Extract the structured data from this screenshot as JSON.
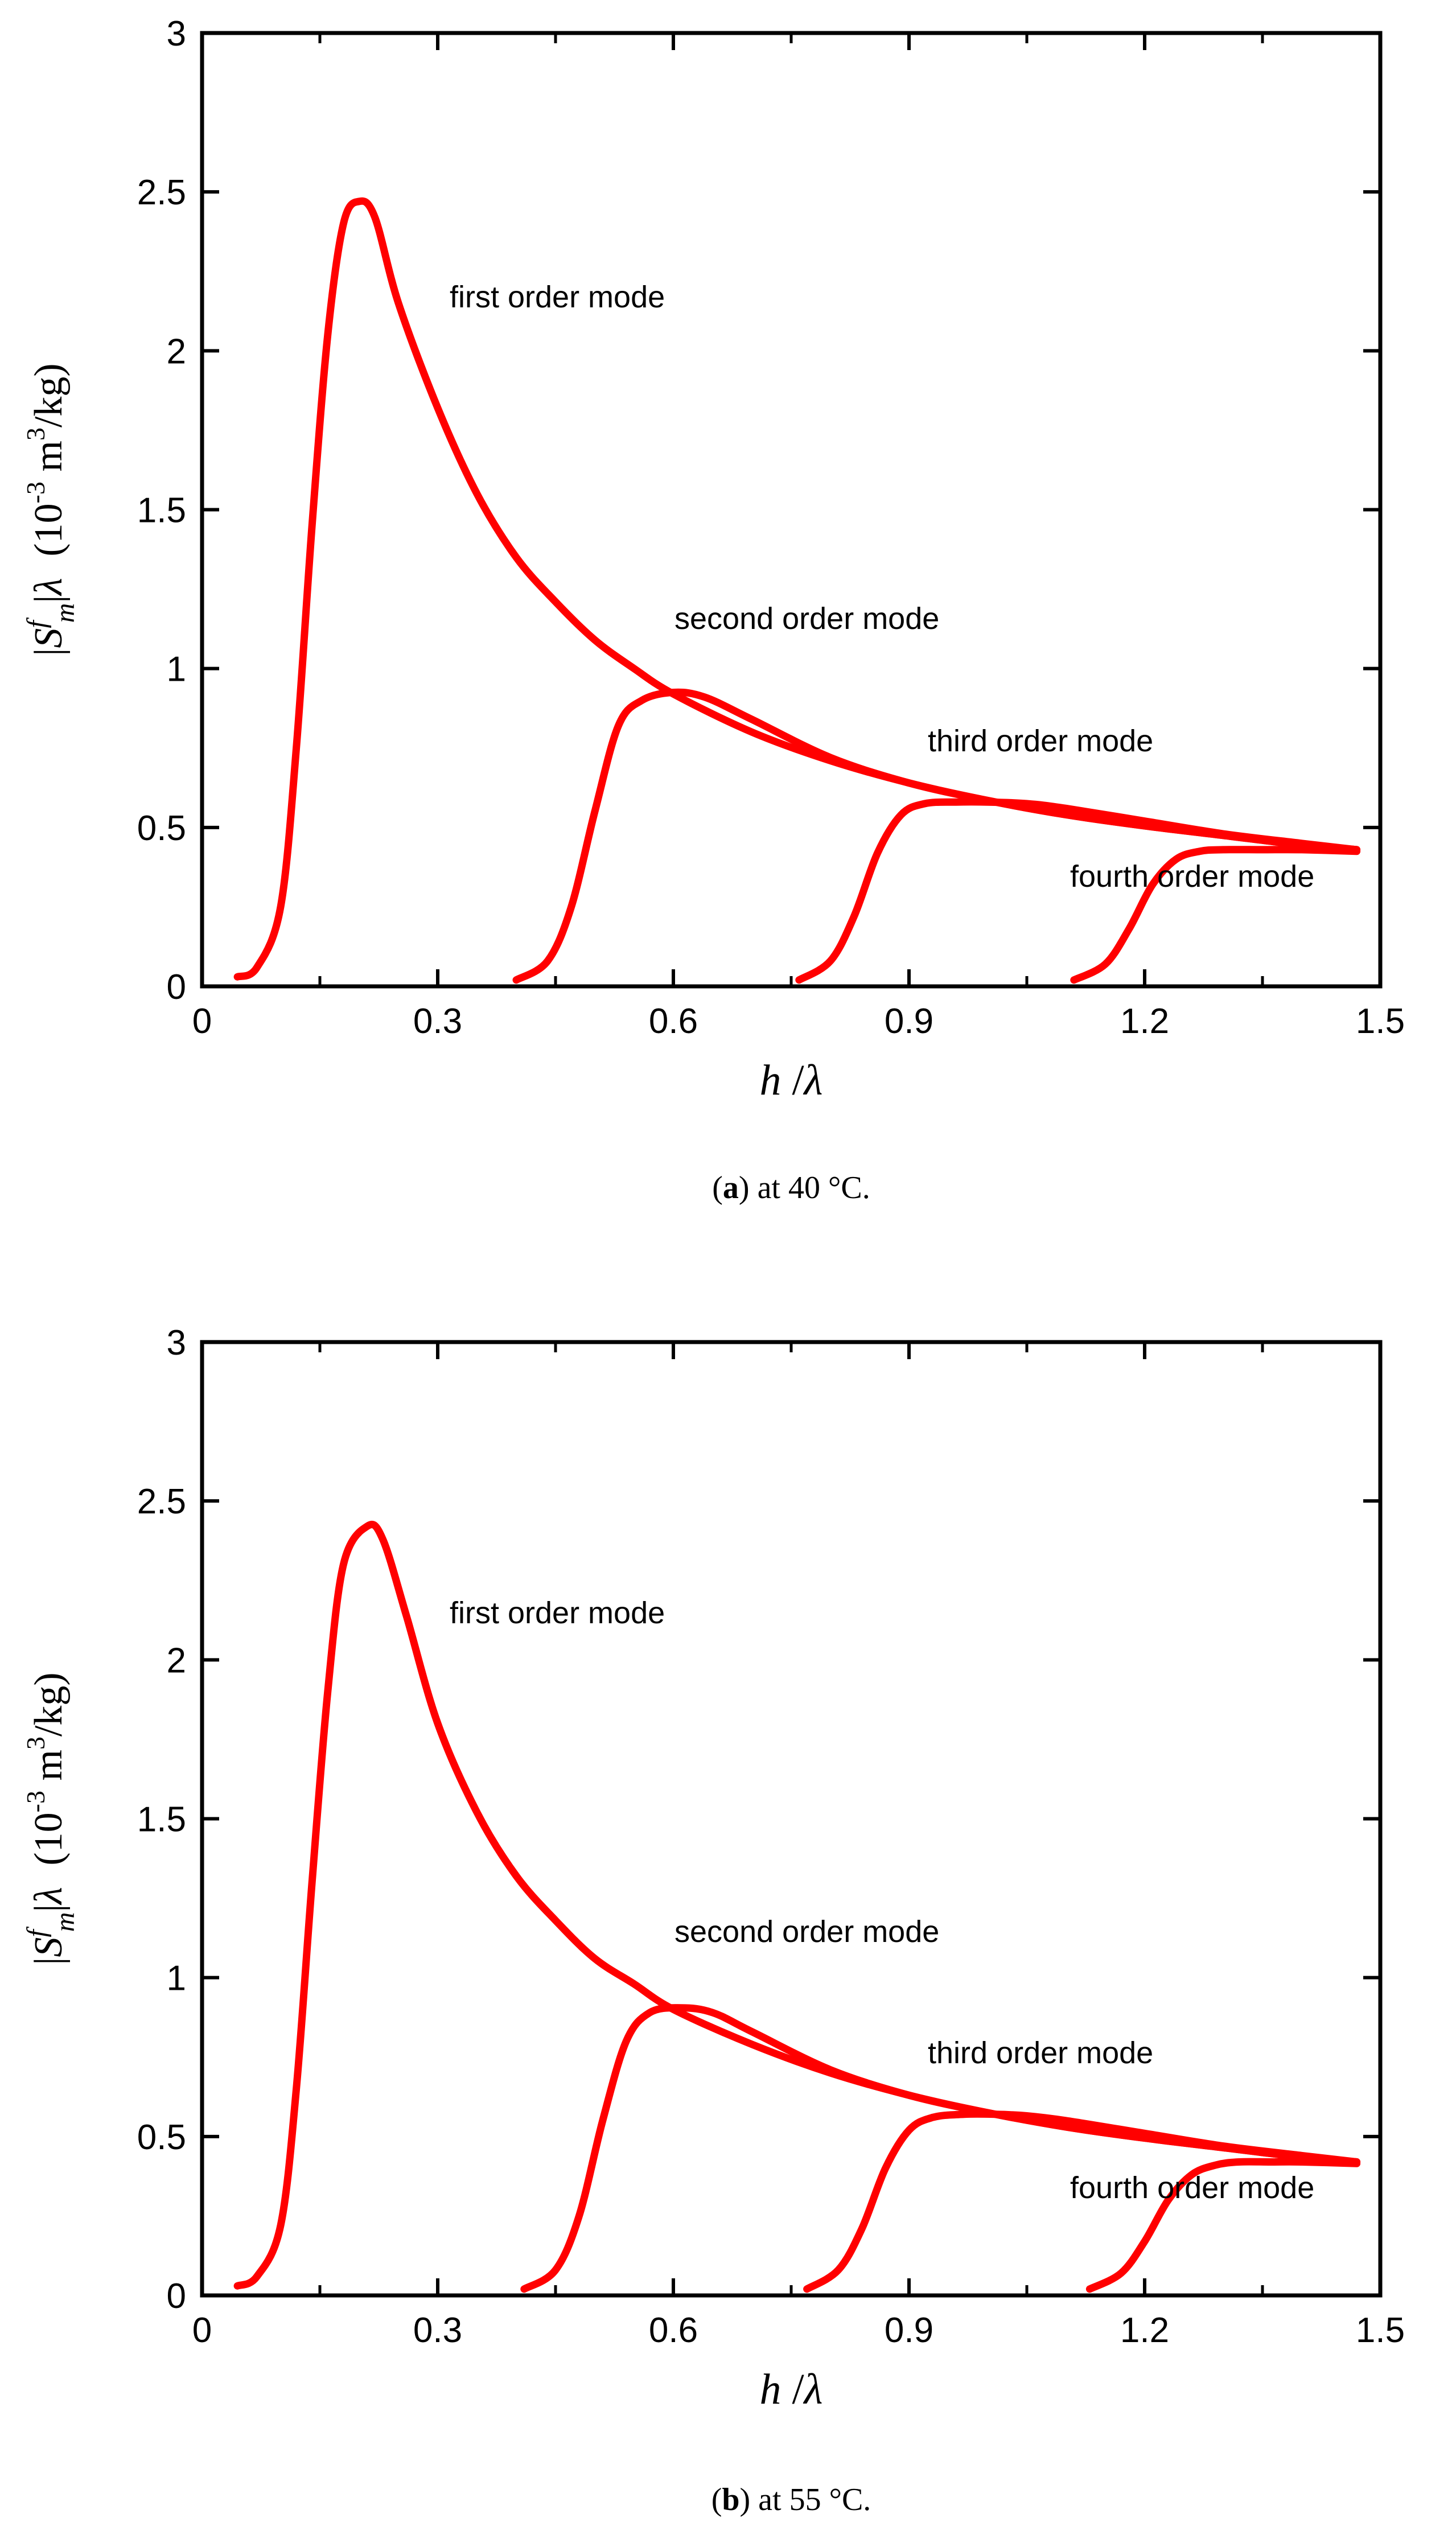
{
  "chart_data": [
    {
      "type": "line",
      "panel": "a",
      "caption_letter": "a",
      "caption_text": ") at 40 °C.",
      "xlabel": "h /λ",
      "ylabel": "|S_m^f|λ (10^-3 m^3/kg)",
      "ylabel_parts": {
        "s": "S",
        "m": " m",
        "f": "f",
        "lambda": "λ",
        "unit_open": "(10",
        "exp1": "-3",
        "exp2": "3",
        "unit_close": "/kg)"
      },
      "xlabel_parts": {
        "h": "h",
        "slash": " /",
        "lambda": "λ"
      },
      "xlim": [
        0,
        1.5
      ],
      "ylim": [
        0,
        3
      ],
      "x_ticks": [
        "0",
        "0.3",
        "0.6",
        "0.9",
        "1.2",
        "1.5"
      ],
      "y_ticks": [
        "0",
        "0.5",
        "1",
        "1.5",
        "2",
        "2.5",
        "3"
      ],
      "series": [
        {
          "name": "first order mode",
          "x": [
            0.045,
            0.07,
            0.1,
            0.12,
            0.14,
            0.16,
            0.18,
            0.2,
            0.22,
            0.25,
            0.3,
            0.35,
            0.4,
            0.45,
            0.5,
            0.55,
            0.6,
            0.7,
            0.8,
            0.9,
            1.0,
            1.1,
            1.2,
            1.3,
            1.4,
            1.47
          ],
          "y": [
            0.03,
            0.06,
            0.25,
            0.75,
            1.45,
            2.05,
            2.4,
            2.47,
            2.42,
            2.15,
            1.82,
            1.55,
            1.35,
            1.21,
            1.09,
            1.0,
            0.92,
            0.8,
            0.71,
            0.64,
            0.585,
            0.54,
            0.505,
            0.475,
            0.445,
            0.43
          ],
          "label": "first order mode"
        },
        {
          "name": "second order mode",
          "x": [
            0.4,
            0.44,
            0.47,
            0.5,
            0.53,
            0.56,
            0.6,
            0.64,
            0.7,
            0.8,
            0.9,
            1.0,
            1.1,
            1.2,
            1.3,
            1.4,
            1.47
          ],
          "y": [
            0.02,
            0.08,
            0.25,
            0.55,
            0.82,
            0.9,
            0.925,
            0.91,
            0.84,
            0.72,
            0.64,
            0.585,
            0.54,
            0.505,
            0.475,
            0.445,
            0.43
          ],
          "label": "second order mode"
        },
        {
          "name": "third order mode",
          "x": [
            0.76,
            0.8,
            0.83,
            0.86,
            0.89,
            0.92,
            0.96,
            1.0,
            1.05,
            1.1,
            1.2,
            1.3,
            1.4,
            1.47
          ],
          "y": [
            0.02,
            0.08,
            0.22,
            0.42,
            0.54,
            0.575,
            0.58,
            0.58,
            0.575,
            0.56,
            0.52,
            0.48,
            0.45,
            0.43
          ],
          "label": "third order mode"
        },
        {
          "name": "fourth order mode",
          "x": [
            1.11,
            1.15,
            1.18,
            1.21,
            1.24,
            1.27,
            1.3,
            1.35,
            1.4,
            1.47
          ],
          "y": [
            0.02,
            0.07,
            0.18,
            0.32,
            0.4,
            0.425,
            0.43,
            0.43,
            0.43,
            0.425
          ],
          "label": "fourth order mode"
        }
      ],
      "annotations": [
        "first order mode",
        "second order mode",
        "third order mode",
        "fourth order mode"
      ]
    },
    {
      "type": "line",
      "panel": "b",
      "caption_letter": "b",
      "caption_text": ") at 55 °C.",
      "xlabel": "h /λ",
      "ylabel": "|S_m^f|λ (10^-3 m^3/kg)",
      "ylabel_parts": {
        "s": "S",
        "m": " m",
        "f": "f",
        "lambda": "λ",
        "unit_open": "(10",
        "exp1": "-3",
        "exp2": "3",
        "unit_close": "/kg)"
      },
      "xlabel_parts": {
        "h": "h",
        "slash": " /",
        "lambda": "λ"
      },
      "xlim": [
        0,
        1.5
      ],
      "ylim": [
        0,
        3
      ],
      "x_ticks": [
        "0",
        "0.3",
        "0.6",
        "0.9",
        "1.2",
        "1.5"
      ],
      "y_ticks": [
        "0",
        "0.5",
        "1",
        "1.5",
        "2",
        "2.5",
        "3"
      ],
      "series": [
        {
          "name": "first order mode",
          "x": [
            0.045,
            0.07,
            0.1,
            0.12,
            0.14,
            0.16,
            0.18,
            0.21,
            0.23,
            0.26,
            0.3,
            0.35,
            0.4,
            0.45,
            0.5,
            0.55,
            0.6,
            0.7,
            0.8,
            0.9,
            1.0,
            1.1,
            1.2,
            1.3,
            1.4,
            1.47
          ],
          "y": [
            0.03,
            0.06,
            0.22,
            0.65,
            1.3,
            1.9,
            2.3,
            2.42,
            2.38,
            2.14,
            1.8,
            1.52,
            1.32,
            1.18,
            1.06,
            0.98,
            0.9,
            0.79,
            0.7,
            0.63,
            0.575,
            0.53,
            0.495,
            0.465,
            0.435,
            0.42
          ],
          "label": "first order mode"
        },
        {
          "name": "second order mode",
          "x": [
            0.41,
            0.45,
            0.48,
            0.51,
            0.54,
            0.57,
            0.61,
            0.65,
            0.7,
            0.8,
            0.9,
            1.0,
            1.1,
            1.2,
            1.3,
            1.4,
            1.47
          ],
          "y": [
            0.02,
            0.08,
            0.25,
            0.55,
            0.8,
            0.89,
            0.905,
            0.89,
            0.83,
            0.71,
            0.63,
            0.575,
            0.53,
            0.495,
            0.465,
            0.435,
            0.42
          ],
          "label": "second order mode"
        },
        {
          "name": "third order mode",
          "x": [
            0.77,
            0.81,
            0.84,
            0.87,
            0.9,
            0.93,
            0.97,
            1.01,
            1.05,
            1.1,
            1.2,
            1.3,
            1.4,
            1.47
          ],
          "y": [
            0.02,
            0.08,
            0.21,
            0.4,
            0.52,
            0.56,
            0.57,
            0.57,
            0.565,
            0.55,
            0.51,
            0.47,
            0.44,
            0.42
          ],
          "label": "third order mode"
        },
        {
          "name": "fourth order mode",
          "x": [
            1.13,
            1.17,
            1.2,
            1.23,
            1.26,
            1.29,
            1.32,
            1.36,
            1.4,
            1.47
          ],
          "y": [
            0.02,
            0.07,
            0.17,
            0.3,
            0.38,
            0.41,
            0.42,
            0.42,
            0.42,
            0.415
          ],
          "label": "fourth order mode"
        }
      ],
      "annotations": [
        "first order mode",
        "second order mode",
        "third order mode",
        "fourth order mode"
      ]
    }
  ]
}
